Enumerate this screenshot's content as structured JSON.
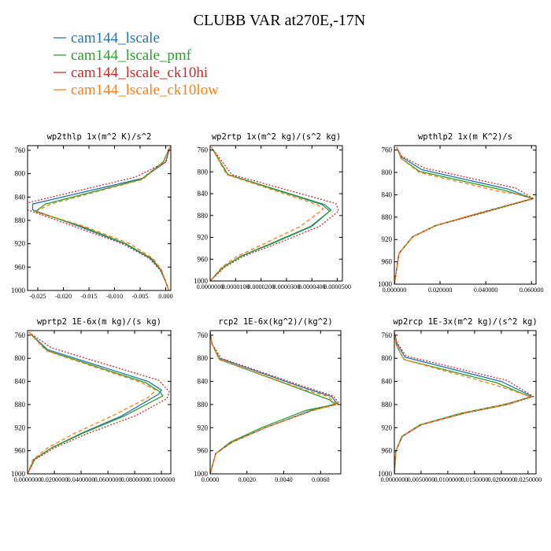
{
  "figure": {
    "title": "CLUBB VAR at270E,-17N"
  },
  "legend": [
    {
      "name": "cam144_lscale",
      "color": "#1f77b4",
      "dash": "solid"
    },
    {
      "name": "cam144_lscale_pmf",
      "color": "#2ca02c",
      "dash": "solid"
    },
    {
      "name": "cam144_lscale_ck10hi",
      "color": "#d62728",
      "dash": "dotted"
    },
    {
      "name": "cam144_lscale_ck10low",
      "color": "#ff7f0e",
      "dash": "dashed"
    }
  ],
  "chart_data": [
    {
      "type": "line",
      "title": "wp2thlp  1x(m^2 K)/s^2",
      "xlim": [
        -0.027,
        0.001
      ],
      "ylim": [
        1000,
        752
      ],
      "xticks": [
        -0.025,
        -0.02,
        -0.015,
        -0.01,
        -0.005,
        0.0
      ],
      "xtick_labels": [
        "-0.025",
        "-0.020",
        "-0.015",
        "-0.010",
        "-0.005",
        "0.000"
      ],
      "yticks": [
        760,
        800,
        840,
        880,
        920,
        960,
        1000
      ],
      "ytick_labels": [
        "760",
        "800",
        "840",
        "880",
        "920",
        "960",
        "1000"
      ],
      "series": [
        {
          "name": "cam144_lscale",
          "x": [
            0.0008,
            0.0,
            -0.0045,
            -0.026,
            -0.026,
            -0.017,
            -0.008,
            -0.003,
            -0.001,
            0.0,
            0.0006
          ],
          "y": [
            755,
            780,
            808,
            852,
            862,
            890,
            920,
            945,
            965,
            985,
            1000
          ]
        },
        {
          "name": "cam144_lscale_pmf",
          "x": [
            0.0008,
            -0.0005,
            -0.0048,
            -0.0235,
            -0.0255,
            -0.0165,
            -0.0078,
            -0.0028,
            -0.0009,
            0.0,
            0.0006
          ],
          "y": [
            755,
            780,
            810,
            852,
            865,
            890,
            920,
            945,
            965,
            985,
            1000
          ]
        },
        {
          "name": "cam144_lscale_ck10hi",
          "x": [
            0.0008,
            0.0001,
            -0.006,
            -0.027,
            -0.027,
            -0.018,
            -0.0085,
            -0.0032,
            -0.0011,
            0.0,
            0.0006
          ],
          "y": [
            755,
            780,
            806,
            850,
            862,
            890,
            920,
            945,
            965,
            985,
            1000
          ]
        },
        {
          "name": "cam144_lscale_ck10low",
          "x": [
            0.0008,
            -0.0004,
            -0.0045,
            -0.0225,
            -0.0255,
            -0.016,
            -0.007,
            -0.0025,
            -0.0008,
            0.0,
            0.0006
          ],
          "y": [
            755,
            780,
            810,
            852,
            865,
            890,
            920,
            945,
            965,
            985,
            1000
          ]
        }
      ]
    },
    {
      "type": "line",
      "title": "wp2rtp  1x(m^2 kg)/(s^2 kg)",
      "xlim": [
        0,
        5.2e-05
      ],
      "ylim": [
        1000,
        752
      ],
      "xticks": [
        0,
        1e-05,
        2e-05,
        3e-05,
        4e-05,
        5e-05
      ],
      "xtick_labels": [
        "0.0000000",
        "0.0000100",
        "0.0000200",
        "0.0000300",
        "0.0000400",
        "0.0000500"
      ],
      "yticks": [
        760,
        800,
        840,
        880,
        920,
        960,
        1000
      ],
      "ytick_labels": [
        "760",
        "800",
        "840",
        "880",
        "920",
        "960",
        "1000"
      ],
      "series": [
        {
          "name": "cam144_lscale",
          "x": [
            5e-07,
            7e-06,
            4.5e-05,
            4.75e-05,
            4e-05,
            2.5e-05,
            1.2e-05,
            5e-06,
            0.0
          ],
          "y": [
            755,
            805,
            860,
            870,
            900,
            930,
            955,
            975,
            1000
          ]
        },
        {
          "name": "cam144_lscale_pmf",
          "x": [
            5e-07,
            7e-06,
            4.4e-05,
            4.7e-05,
            3.95e-05,
            2.45e-05,
            1.18e-05,
            5e-06,
            0.0
          ],
          "y": [
            755,
            805,
            860,
            872,
            900,
            930,
            955,
            975,
            1000
          ]
        },
        {
          "name": "cam144_lscale_ck10hi",
          "x": [
            5e-07,
            8.5e-06,
            4.95e-05,
            5.05e-05,
            4.3e-05,
            2.7e-05,
            1.3e-05,
            5.5e-06,
            0.0
          ],
          "y": [
            755,
            805,
            858,
            872,
            900,
            930,
            955,
            975,
            1000
          ]
        },
        {
          "name": "cam144_lscale_ck10low",
          "x": [
            5e-07,
            6.5e-06,
            4.2e-05,
            4.45e-05,
            3.55e-05,
            2.2e-05,
            1.05e-05,
            4.5e-06,
            0.0
          ],
          "y": [
            755,
            805,
            860,
            868,
            900,
            930,
            955,
            975,
            1000
          ]
        }
      ]
    },
    {
      "type": "line",
      "title": "wpthlp2  1x(m K^2)/s",
      "xlim": [
        0,
        0.062
      ],
      "ylim": [
        1000,
        752
      ],
      "xticks": [
        0,
        0.02,
        0.04,
        0.06
      ],
      "xtick_labels": [
        "0.000000",
        "0.020000",
        "0.040000",
        "0.060000"
      ],
      "yticks": [
        760,
        800,
        840,
        880,
        920,
        960,
        1000
      ],
      "ytick_labels": [
        "760",
        "800",
        "840",
        "880",
        "920",
        "960",
        "1000"
      ],
      "series": [
        {
          "name": "cam144_lscale",
          "x": [
            0.001,
            0.003,
            0.012,
            0.05,
            0.0605,
            0.04,
            0.018,
            0.008,
            0.002,
            0.0
          ],
          "y": [
            755,
            772,
            795,
            830,
            847,
            870,
            895,
            915,
            945,
            1000
          ]
        },
        {
          "name": "cam144_lscale_pmf",
          "x": [
            0.001,
            0.003,
            0.011,
            0.048,
            0.0605,
            0.04,
            0.018,
            0.008,
            0.002,
            0.0
          ],
          "y": [
            755,
            775,
            798,
            832,
            847,
            870,
            895,
            915,
            945,
            1000
          ]
        },
        {
          "name": "cam144_lscale_ck10hi",
          "x": [
            0.001,
            0.003,
            0.013,
            0.053,
            0.061,
            0.041,
            0.0185,
            0.0082,
            0.0021,
            0.0
          ],
          "y": [
            755,
            770,
            792,
            828,
            847,
            870,
            895,
            915,
            945,
            1000
          ]
        },
        {
          "name": "cam144_lscale_ck10low",
          "x": [
            0.001,
            0.003,
            0.011,
            0.046,
            0.058,
            0.06,
            0.039,
            0.018,
            0.008,
            0.002,
            0.0
          ],
          "y": [
            755,
            775,
            800,
            834,
            842,
            847,
            870,
            895,
            915,
            945,
            1000
          ]
        }
      ]
    },
    {
      "type": "line",
      "title": "wprtp2  1E-6x(m kg)/(s kg)",
      "xlim": [
        0,
        0.107
      ],
      "ylim": [
        1000,
        752
      ],
      "xticks": [
        0,
        0.02,
        0.04,
        0.06,
        0.08,
        0.1
      ],
      "xtick_labels": [
        "0.0000000",
        "0.0200000",
        "0.0400000",
        "0.0600000",
        "0.0800000",
        "0.1000000"
      ],
      "yticks": [
        760,
        800,
        840,
        880,
        920,
        960,
        1000
      ],
      "ytick_labels": [
        "760",
        "800",
        "840",
        "880",
        "920",
        "960",
        "1000"
      ],
      "series": [
        {
          "name": "cam144_lscale",
          "x": [
            0.001,
            0.015,
            0.09,
            0.1,
            0.098,
            0.07,
            0.04,
            0.018,
            0.005,
            0.0
          ],
          "y": [
            755,
            785,
            840,
            855,
            862,
            900,
            930,
            955,
            975,
            1000
          ]
        },
        {
          "name": "cam144_lscale_pmf",
          "x": [
            0.001,
            0.015,
            0.088,
            0.099,
            0.101,
            0.072,
            0.041,
            0.018,
            0.005,
            0.0
          ],
          "y": [
            755,
            787,
            842,
            858,
            865,
            900,
            930,
            955,
            975,
            1000
          ]
        },
        {
          "name": "cam144_lscale_ck10hi",
          "x": [
            0.001,
            0.018,
            0.098,
            0.106,
            0.104,
            0.08,
            0.045,
            0.02,
            0.0055,
            0.0
          ],
          "y": [
            755,
            782,
            838,
            858,
            870,
            900,
            930,
            955,
            975,
            1000
          ]
        },
        {
          "name": "cam144_lscale_ck10low",
          "x": [
            0.001,
            0.014,
            0.085,
            0.096,
            0.09,
            0.063,
            0.035,
            0.015,
            0.004,
            0.0
          ],
          "y": [
            755,
            787,
            842,
            855,
            868,
            900,
            930,
            955,
            975,
            1000
          ]
        }
      ]
    },
    {
      "type": "line",
      "title": "rcp2  1E-6x(kg^2)/(kg^2)",
      "xlim": [
        0,
        0.0071
      ],
      "ylim": [
        1000,
        752
      ],
      "xticks": [
        0,
        0.002,
        0.004,
        0.006
      ],
      "xtick_labels": [
        "0.0000",
        "0.0020",
        "0.0040",
        "0.0060"
      ],
      "yticks": [
        760,
        800,
        840,
        880,
        920,
        960,
        1000
      ],
      "ytick_labels": [
        "760",
        "800",
        "840",
        "880",
        "920",
        "960",
        "1000"
      ],
      "series": [
        {
          "name": "cam144_lscale",
          "x": [
            0.0,
            0.0001,
            0.0005,
            0.005,
            0.0066,
            0.0069,
            0.0055,
            0.003,
            0.0012,
            0.0003,
            0.0
          ],
          "y": [
            755,
            775,
            800,
            850,
            866,
            878,
            890,
            920,
            945,
            965,
            1000
          ]
        },
        {
          "name": "cam144_lscale_pmf",
          "x": [
            0.0,
            0.0001,
            0.0005,
            0.0048,
            0.0065,
            0.0068,
            0.0052,
            0.0028,
            0.0011,
            0.0003,
            0.0
          ],
          "y": [
            755,
            775,
            802,
            852,
            872,
            880,
            890,
            920,
            945,
            965,
            1000
          ]
        },
        {
          "name": "cam144_lscale_ck10hi",
          "x": [
            0.0,
            0.0001,
            0.0006,
            0.0052,
            0.0067,
            0.007,
            0.0056,
            0.003,
            0.0012,
            0.0003,
            0.0
          ],
          "y": [
            755,
            775,
            800,
            850,
            865,
            878,
            890,
            920,
            945,
            965,
            1000
          ]
        },
        {
          "name": "cam144_lscale_ck10low",
          "x": [
            0.0,
            0.0001,
            0.0005,
            0.0049,
            0.0064,
            0.0069,
            0.0056,
            0.003,
            0.0012,
            0.0003,
            0.0
          ],
          "y": [
            755,
            775,
            802,
            852,
            866,
            880,
            890,
            920,
            945,
            965,
            1000
          ]
        }
      ]
    },
    {
      "type": "line",
      "title": "wp2rcp  1E-3x(m^2 kg)/(s^2 kg)",
      "xlim": [
        0,
        0.0265
      ],
      "ylim": [
        1000,
        752
      ],
      "xticks": [
        0,
        0.005,
        0.01,
        0.015,
        0.02,
        0.025
      ],
      "xtick_labels": [
        "0.0000000",
        "0.0050000",
        "0.0100000",
        "0.0150000",
        "0.0200000",
        "0.0250000"
      ],
      "yticks": [
        760,
        800,
        840,
        880,
        920,
        960,
        1000
      ],
      "ytick_labels": [
        "760",
        "800",
        "840",
        "880",
        "920",
        "960",
        "1000"
      ],
      "series": [
        {
          "name": "cam144_lscale",
          "x": [
            0.0,
            0.0005,
            0.002,
            0.02,
            0.0258,
            0.021,
            0.013,
            0.005,
            0.0015,
            0.0003,
            0.0
          ],
          "y": [
            755,
            775,
            798,
            840,
            866,
            880,
            895,
            915,
            935,
            960,
            1000
          ]
        },
        {
          "name": "cam144_lscale_pmf",
          "x": [
            0.0,
            0.0004,
            0.0018,
            0.019,
            0.0255,
            0.0205,
            0.0125,
            0.0048,
            0.0014,
            0.0003,
            0.0
          ],
          "y": [
            755,
            778,
            802,
            842,
            867,
            880,
            895,
            915,
            935,
            960,
            1000
          ]
        },
        {
          "name": "cam144_lscale_ck10hi",
          "x": [
            0.0,
            0.0005,
            0.0022,
            0.021,
            0.026,
            0.0212,
            0.0132,
            0.0051,
            0.0015,
            0.0003,
            0.0
          ],
          "y": [
            755,
            773,
            796,
            838,
            866,
            880,
            895,
            915,
            935,
            960,
            1000
          ]
        },
        {
          "name": "cam144_lscale_ck10low",
          "x": [
            0.0,
            0.0004,
            0.0018,
            0.0185,
            0.0255,
            0.0208,
            0.0128,
            0.0049,
            0.0014,
            0.0003,
            0.0
          ],
          "y": [
            755,
            778,
            802,
            845,
            866,
            880,
            895,
            915,
            935,
            960,
            1000
          ]
        }
      ]
    }
  ]
}
